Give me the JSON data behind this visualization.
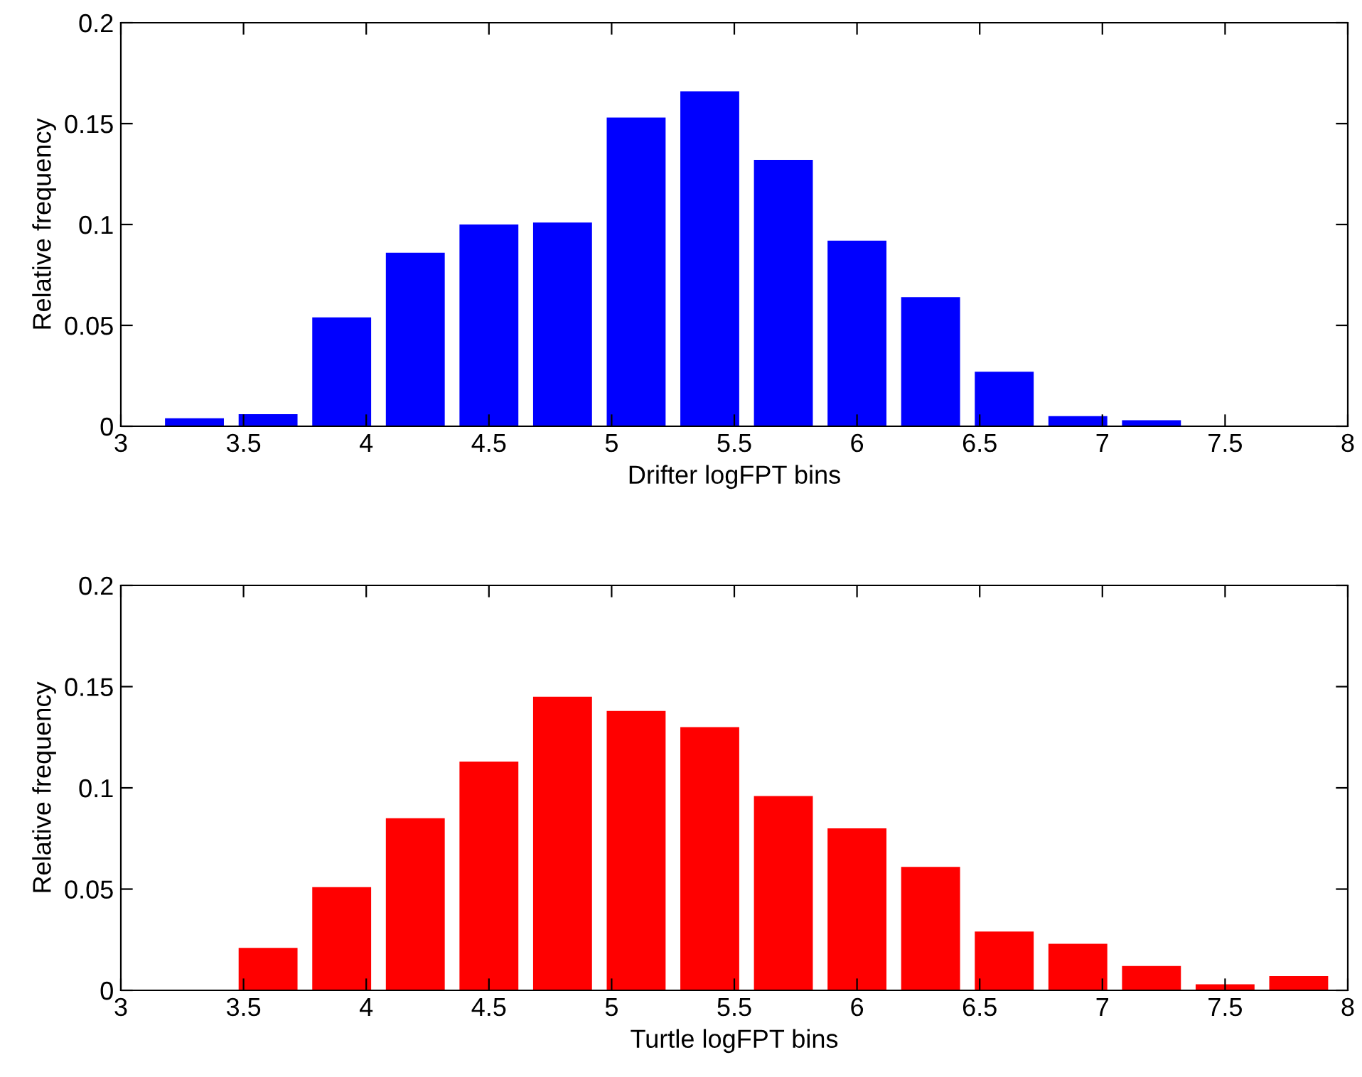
{
  "chart_data": [
    {
      "type": "bar",
      "xlabel": "Drifter logFPT bins",
      "ylabel": "Relative frequency",
      "x": [
        3.3,
        3.6,
        3.9,
        4.2,
        4.5,
        4.8,
        5.1,
        5.4,
        5.7,
        6.0,
        6.3,
        6.6,
        6.9,
        7.2,
        7.5,
        7.8
      ],
      "series": [
        {
          "color": "#0000ff",
          "values": [
            0.004,
            0.006,
            0.054,
            0.086,
            0.1,
            0.101,
            0.153,
            0.166,
            0.132,
            0.092,
            0.064,
            0.027,
            0.005,
            0.003,
            0,
            0
          ]
        }
      ],
      "xlim": [
        3,
        8
      ],
      "xticks": [
        3,
        3.5,
        4,
        4.5,
        5,
        5.5,
        6,
        6.5,
        7,
        7.5,
        8
      ],
      "ylim": [
        0,
        0.2
      ],
      "yticks": [
        0,
        0.05,
        0.1,
        0.15,
        0.2
      ]
    },
    {
      "type": "bar",
      "xlabel": "Turtle logFPT bins",
      "ylabel": "Relative frequency",
      "x": [
        3.3,
        3.6,
        3.9,
        4.2,
        4.5,
        4.8,
        5.1,
        5.4,
        5.7,
        6.0,
        6.3,
        6.6,
        6.9,
        7.2,
        7.5,
        7.8
      ],
      "series": [
        {
          "color": "#ff0000",
          "values": [
            0,
            0.021,
            0.051,
            0.085,
            0.113,
            0.145,
            0.138,
            0.13,
            0.096,
            0.08,
            0.061,
            0.029,
            0.023,
            0.012,
            0.003,
            0.007
          ]
        }
      ],
      "xlim": [
        3,
        8
      ],
      "xticks": [
        3,
        3.5,
        4,
        4.5,
        5,
        5.5,
        6,
        6.5,
        7,
        7.5,
        8
      ],
      "ylim": [
        0,
        0.2
      ],
      "yticks": [
        0,
        0.05,
        0.1,
        0.15,
        0.2
      ]
    }
  ]
}
